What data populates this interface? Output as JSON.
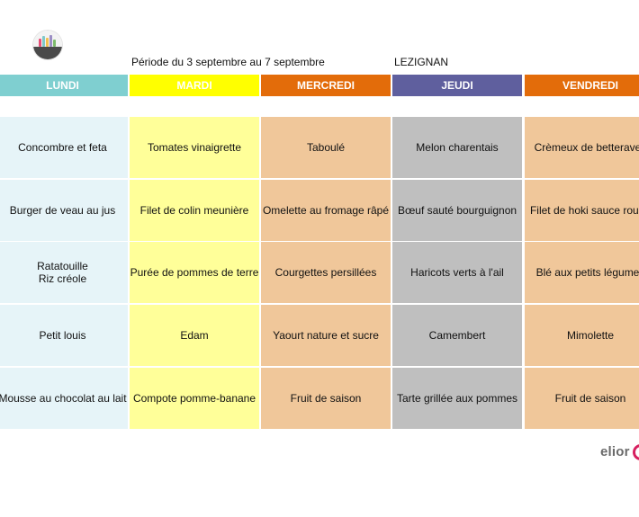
{
  "header": {
    "period": "Période du 3 septembre au 7 septembre",
    "location": "LEZIGNAN"
  },
  "days": [
    {
      "label": "LUNDI",
      "color": "#7fcfd0"
    },
    {
      "label": "MARDI",
      "color": "#ffff00"
    },
    {
      "label": "MERCREDI",
      "color": "#e36c0a"
    },
    {
      "label": "JEUDI",
      "color": "#5f5f9e"
    },
    {
      "label": "VENDREDI",
      "color": "#e36c0a"
    }
  ],
  "cell_colors": [
    "#e6f4f8",
    "#ffff99",
    "#f0c79a",
    "#bfbfbf",
    "#f0c79a"
  ],
  "menu": [
    [
      "Concombre et feta",
      "Tomates vinaigrette",
      "Taboulé",
      "Melon charentais",
      "Crèmeux de betteraves"
    ],
    [
      "Burger de veau au jus",
      "Filet de colin meunière",
      "Omelette au fromage râpé",
      "Bœuf sauté bourguignon",
      "Filet de hoki sauce rouge"
    ],
    [
      "Ratatouille\nRiz créole",
      "Purée de pommes de terre",
      "Courgettes persillées",
      "Haricots verts à l'ail",
      "Blé aux petits légumes"
    ],
    [
      "Petit louis",
      "Edam",
      "Yaourt nature et sucre",
      "Camembert",
      "Mimolette"
    ],
    [
      "Mousse au chocolat au lait",
      "Compote pomme-banane",
      "Fruit de saison",
      "Tarte grillée aux pommes",
      "Fruit de saison"
    ]
  ],
  "branding": {
    "company": "elior",
    "company_color": "#d61f5f"
  }
}
